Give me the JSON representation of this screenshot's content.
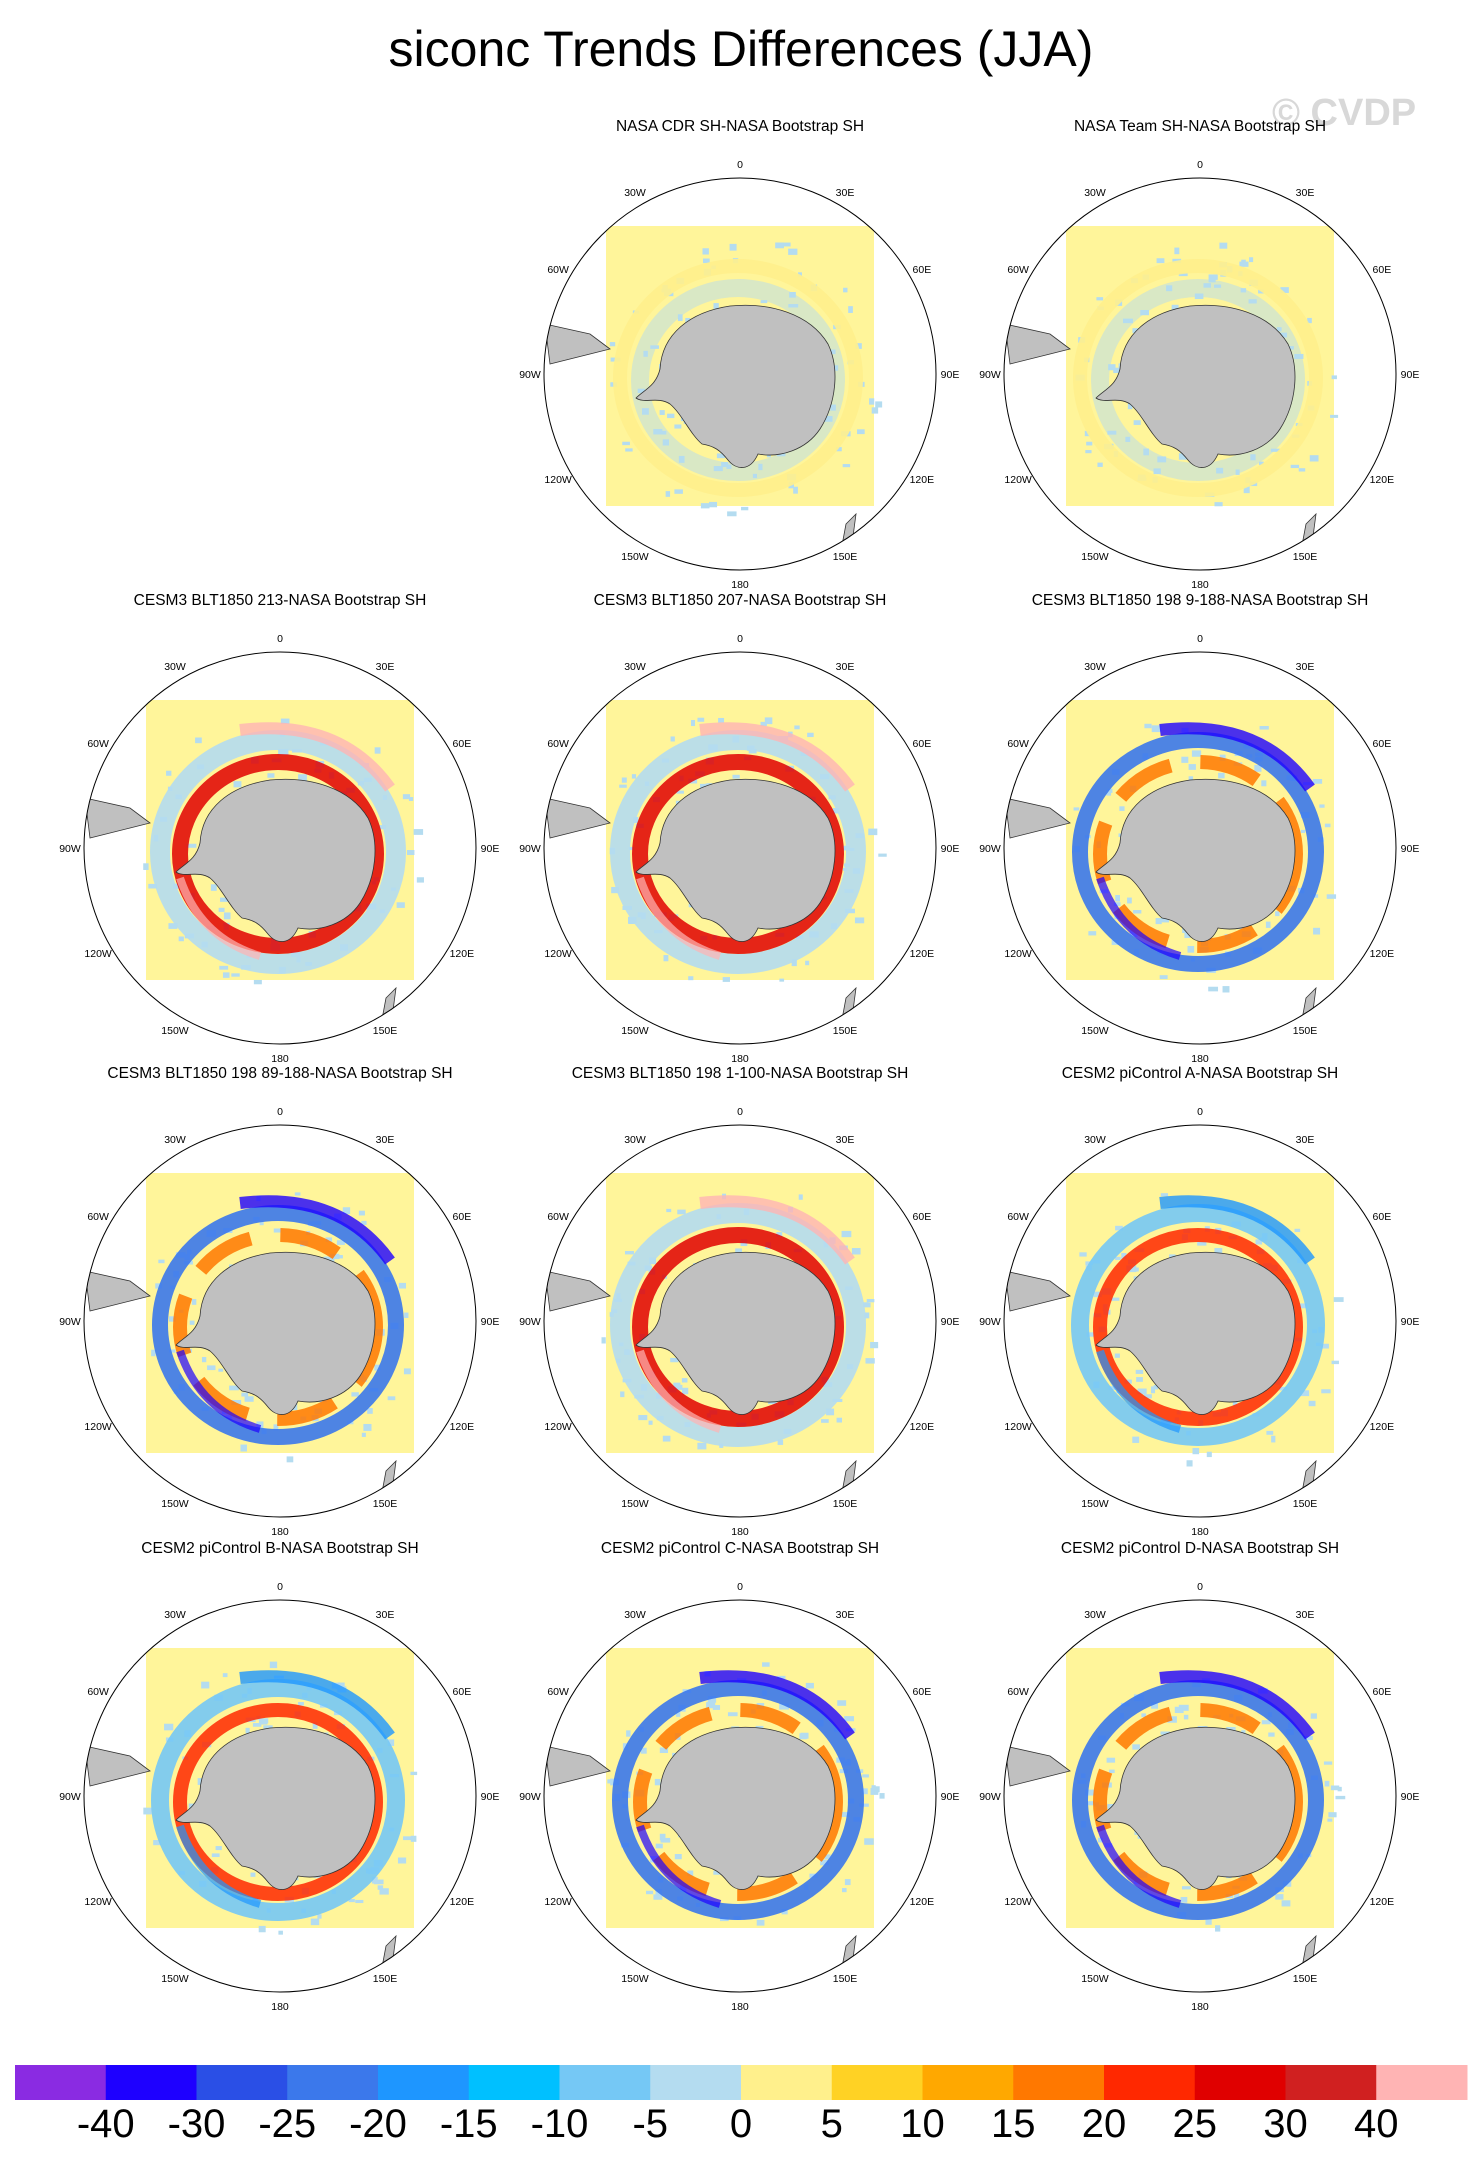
{
  "title": "siconc Trends Differences (JJA)",
  "watermark": "© CVDP",
  "lon_labels": [
    "0",
    "30E",
    "60E",
    "90E",
    "120E",
    "150E",
    "180",
    "150W",
    "120W",
    "90W",
    "60W",
    "30W"
  ],
  "panels": [
    {
      "title": "NASA CDR SH-NASA Bootstrap SH",
      "pattern": "weak"
    },
    {
      "title": "NASA Team SH-NASA Bootstrap SH",
      "pattern": "weak"
    },
    {
      "title": "CESM3 BLT1850 213-NASA Bootstrap SH",
      "pattern": "strong-positive"
    },
    {
      "title": "CESM3 BLT1850 207-NASA Bootstrap SH",
      "pattern": "strong-positive"
    },
    {
      "title": "CESM3 BLT1850 198 9-188-NASA Bootstrap SH",
      "pattern": "mixed"
    },
    {
      "title": "CESM3 BLT1850 198 89-188-NASA Bootstrap SH",
      "pattern": "mixed"
    },
    {
      "title": "CESM3 BLT1850 198 1-100-NASA Bootstrap SH",
      "pattern": "strong-positive"
    },
    {
      "title": "CESM2 piControl A-NASA Bootstrap SH",
      "pattern": "moderate-positive"
    },
    {
      "title": "CESM2 piControl B-NASA Bootstrap SH",
      "pattern": "moderate-positive"
    },
    {
      "title": "CESM2 piControl C-NASA Bootstrap SH",
      "pattern": "mixed"
    },
    {
      "title": "CESM2 piControl D-NASA Bootstrap SH",
      "pattern": "mixed"
    }
  ],
  "colorbar": {
    "colors": [
      "#8a2be2",
      "#1e00ff",
      "#2a4fe6",
      "#3b78eb",
      "#1e96ff",
      "#00c0ff",
      "#75c8f5",
      "#b4dcf0",
      "#fff08c",
      "#ffd224",
      "#ffa800",
      "#ff7800",
      "#ff2800",
      "#e00000",
      "#d02020",
      "#ffb4b4"
    ],
    "labels": [
      "-40",
      "-30",
      "-25",
      "-20",
      "-15",
      "-10",
      "-5",
      "0",
      "5",
      "10",
      "15",
      "20",
      "25",
      "30",
      "40"
    ]
  },
  "map_colors": {
    "land": "#c0c0c0",
    "background": "#fff59a"
  }
}
